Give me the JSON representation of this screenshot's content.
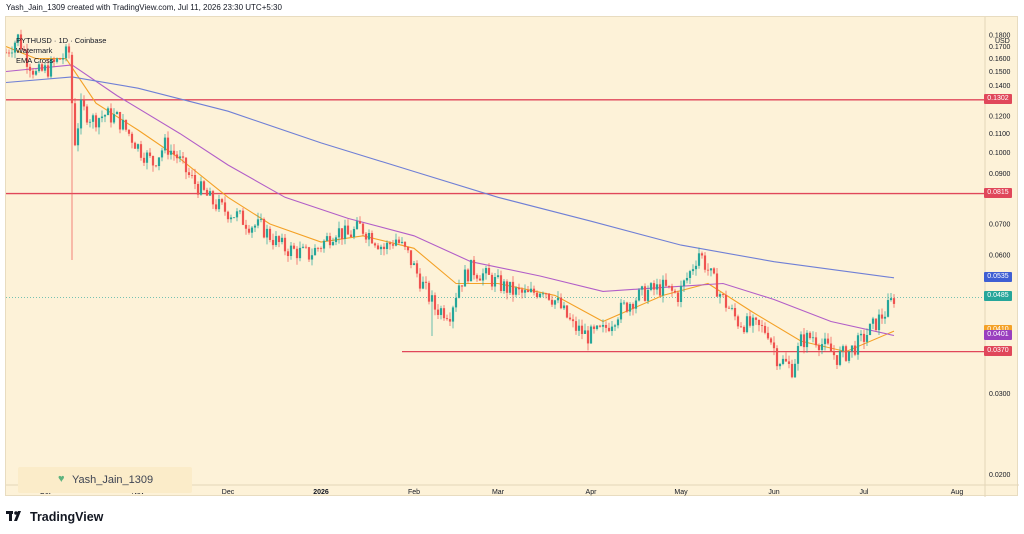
{
  "header": {
    "credit": "Yash_Jain_1309 created with TradingView.com, Jul 11, 2026 23:30 UTC+5:30"
  },
  "legend": {
    "symbol": "PYTHUSD · 1D · Coinbase",
    "indicator1": "Watermark",
    "indicator2": "EMA Cross"
  },
  "watermark": {
    "text": "Yash_Jain_1309",
    "icon": "green-heart-icon"
  },
  "footer": {
    "brand": "TradingView",
    "icon": "tradingview-logo-icon"
  },
  "colors": {
    "background": "#fdf2d8",
    "candle_up": "#26a69a",
    "candle_down": "#ef5350",
    "ema_short": "#f4a126",
    "ema_mid": "#b25ec8",
    "ema_long": "#6f7fd6",
    "levels": "#e0475a"
  },
  "chart_data": {
    "type": "candlestick",
    "title": "PYTHUSD · 1D · Coinbase",
    "currency": "USD",
    "y_scale": "log",
    "ylim": [
      0.019,
      0.195
    ],
    "y_ticks": [
      0.18,
      0.17,
      0.16,
      0.15,
      0.14,
      0.13,
      0.12,
      0.11,
      0.1,
      0.09,
      0.07,
      0.06,
      0.03,
      0.02
    ],
    "y_tick_labels": [
      "0.1800",
      "0.1700",
      "0.1600",
      "0.1500",
      "0.1400",
      "0.1300",
      "0.1200",
      "0.1100",
      "0.1000",
      "0.0900",
      "0.0700",
      "0.0600",
      "0.0300",
      "0.0200"
    ],
    "x_ticks": [
      "Oct",
      "Nov",
      "Dec",
      "2026",
      "Feb",
      "Mar",
      "Apr",
      "May",
      "Jun",
      "Jul",
      "Aug"
    ],
    "x_range": [
      "2025-09-18",
      "2026-08-10"
    ],
    "x_tick_dates": [
      "2025-10-01",
      "2025-11-01",
      "2025-12-01",
      "2026-01-01",
      "2026-02-01",
      "2026-03-01",
      "2026-04-01",
      "2026-05-01",
      "2026-06-01",
      "2026-07-01",
      "2026-08-01"
    ],
    "close_path": [
      [
        "2025-09-18",
        0.165
      ],
      [
        "2025-09-22",
        0.178
      ],
      [
        "2025-09-25",
        0.16
      ],
      [
        "2025-09-28",
        0.148
      ],
      [
        "2025-10-02",
        0.152
      ],
      [
        "2025-10-06",
        0.16
      ],
      [
        "2025-10-09",
        0.165
      ],
      [
        "2025-10-10",
        0.098
      ],
      [
        "2025-10-13",
        0.125
      ],
      [
        "2025-10-17",
        0.118
      ],
      [
        "2025-10-21",
        0.121
      ],
      [
        "2025-10-25",
        0.119
      ],
      [
        "2025-10-29",
        0.11
      ],
      [
        "2025-11-02",
        0.101
      ],
      [
        "2025-11-06",
        0.095
      ],
      [
        "2025-11-10",
        0.104
      ],
      [
        "2025-11-14",
        0.098
      ],
      [
        "2025-11-18",
        0.089
      ],
      [
        "2025-11-22",
        0.083
      ],
      [
        "2025-11-26",
        0.078
      ],
      [
        "2025-11-30",
        0.075
      ],
      [
        "2025-12-04",
        0.073
      ],
      [
        "2025-12-08",
        0.07
      ],
      [
        "2025-12-12",
        0.069
      ],
      [
        "2025-12-16",
        0.065
      ],
      [
        "2025-12-20",
        0.062
      ],
      [
        "2025-12-24",
        0.061
      ],
      [
        "2025-12-28",
        0.06
      ],
      [
        "2026-01-01",
        0.063
      ],
      [
        "2026-01-06",
        0.068
      ],
      [
        "2026-01-10",
        0.066
      ],
      [
        "2026-01-14",
        0.069
      ],
      [
        "2026-01-18",
        0.066
      ],
      [
        "2026-01-22",
        0.062
      ],
      [
        "2026-01-26",
        0.065
      ],
      [
        "2026-01-30",
        0.06
      ],
      [
        "2026-02-03",
        0.053
      ],
      [
        "2026-02-08",
        0.046
      ],
      [
        "2026-02-13",
        0.045
      ],
      [
        "2026-02-16",
        0.052
      ],
      [
        "2026-02-20",
        0.056
      ],
      [
        "2026-02-25",
        0.054
      ],
      [
        "2026-03-01",
        0.052
      ],
      [
        "2026-03-06",
        0.05
      ],
      [
        "2026-03-11",
        0.049
      ],
      [
        "2026-03-16",
        0.051
      ],
      [
        "2026-03-21",
        0.047
      ],
      [
        "2026-03-26",
        0.042
      ],
      [
        "2026-03-31",
        0.04
      ],
      [
        "2026-04-05",
        0.041
      ],
      [
        "2026-04-10",
        0.045
      ],
      [
        "2026-04-15",
        0.048
      ],
      [
        "2026-04-20",
        0.05
      ],
      [
        "2026-04-25",
        0.051
      ],
      [
        "2026-04-30",
        0.049
      ],
      [
        "2026-05-04",
        0.055
      ],
      [
        "2026-05-07",
        0.061
      ],
      [
        "2026-05-11",
        0.054
      ],
      [
        "2026-05-15",
        0.048
      ],
      [
        "2026-05-20",
        0.043
      ],
      [
        "2026-05-25",
        0.042
      ],
      [
        "2026-05-30",
        0.041
      ],
      [
        "2026-06-02",
        0.036
      ],
      [
        "2026-06-07",
        0.034
      ],
      [
        "2026-06-10",
        0.039
      ],
      [
        "2026-06-14",
        0.04
      ],
      [
        "2026-06-18",
        0.038
      ],
      [
        "2026-06-22",
        0.036
      ],
      [
        "2026-06-26",
        0.037
      ],
      [
        "2026-06-30",
        0.039
      ],
      [
        "2026-07-04",
        0.042
      ],
      [
        "2026-07-08",
        0.045
      ],
      [
        "2026-07-11",
        0.0485
      ]
    ],
    "series": [
      {
        "name": "EMA short",
        "color": "#f4a126",
        "points": [
          [
            "2025-09-18",
            0.17
          ],
          [
            "2025-09-28",
            0.16
          ],
          [
            "2025-10-08",
            0.16
          ],
          [
            "2025-10-18",
            0.128
          ],
          [
            "2025-11-01",
            0.112
          ],
          [
            "2025-11-15",
            0.097
          ],
          [
            "2025-12-01",
            0.08
          ],
          [
            "2025-12-15",
            0.07
          ],
          [
            "2026-01-01",
            0.064
          ],
          [
            "2026-01-15",
            0.066
          ],
          [
            "2026-02-01",
            0.062
          ],
          [
            "2026-02-15",
            0.052
          ],
          [
            "2026-03-01",
            0.052
          ],
          [
            "2026-03-20",
            0.049
          ],
          [
            "2026-04-05",
            0.043
          ],
          [
            "2026-04-25",
            0.049
          ],
          [
            "2026-05-10",
            0.052
          ],
          [
            "2026-05-25",
            0.045
          ],
          [
            "2026-06-10",
            0.039
          ],
          [
            "2026-06-25",
            0.037
          ],
          [
            "2026-07-11",
            0.041
          ]
        ]
      },
      {
        "name": "EMA mid",
        "color": "#b25ec8",
        "points": [
          [
            "2025-09-18",
            0.15
          ],
          [
            "2025-10-10",
            0.155
          ],
          [
            "2025-10-25",
            0.133
          ],
          [
            "2025-11-15",
            0.11
          ],
          [
            "2025-12-01",
            0.094
          ],
          [
            "2025-12-20",
            0.08
          ],
          [
            "2026-01-10",
            0.072
          ],
          [
            "2026-02-01",
            0.066
          ],
          [
            "2026-02-20",
            0.058
          ],
          [
            "2026-03-15",
            0.054
          ],
          [
            "2026-04-05",
            0.05
          ],
          [
            "2026-04-25",
            0.051
          ],
          [
            "2026-05-15",
            0.052
          ],
          [
            "2026-06-01",
            0.048
          ],
          [
            "2026-06-20",
            0.043
          ],
          [
            "2026-07-11",
            0.0401
          ]
        ]
      },
      {
        "name": "EMA long",
        "color": "#6f7fd6",
        "points": [
          [
            "2025-09-18",
            0.142
          ],
          [
            "2025-10-10",
            0.146
          ],
          [
            "2025-11-01",
            0.138
          ],
          [
            "2025-12-01",
            0.123
          ],
          [
            "2026-01-01",
            0.105
          ],
          [
            "2026-02-01",
            0.091
          ],
          [
            "2026-03-01",
            0.08
          ],
          [
            "2026-04-01",
            0.071
          ],
          [
            "2026-05-01",
            0.063
          ],
          [
            "2026-06-01",
            0.058
          ],
          [
            "2026-07-11",
            0.0535
          ]
        ]
      }
    ],
    "horizontal_levels": [
      {
        "value": 0.1302,
        "label": "0.1302",
        "color": "#e0475a"
      },
      {
        "value": 0.0815,
        "label": "0.0815",
        "color": "#e0475a"
      },
      {
        "value": 0.037,
        "label": "0.0370",
        "color": "#e0475a",
        "from": "2026-01-28"
      }
    ],
    "price_labels": [
      {
        "value": 0.0535,
        "label": "0.0535",
        "color": "#3f5fd3"
      },
      {
        "value": 0.0485,
        "label": "0.0485",
        "color": "#26a69a"
      },
      {
        "value": 0.041,
        "label": "0.0410",
        "color": "#f4a126"
      },
      {
        "value": 0.0401,
        "label": "0.0401",
        "color": "#9a3fbf"
      },
      {
        "value": 0.037,
        "label": "0.0370",
        "color": "#e0475a"
      }
    ]
  }
}
